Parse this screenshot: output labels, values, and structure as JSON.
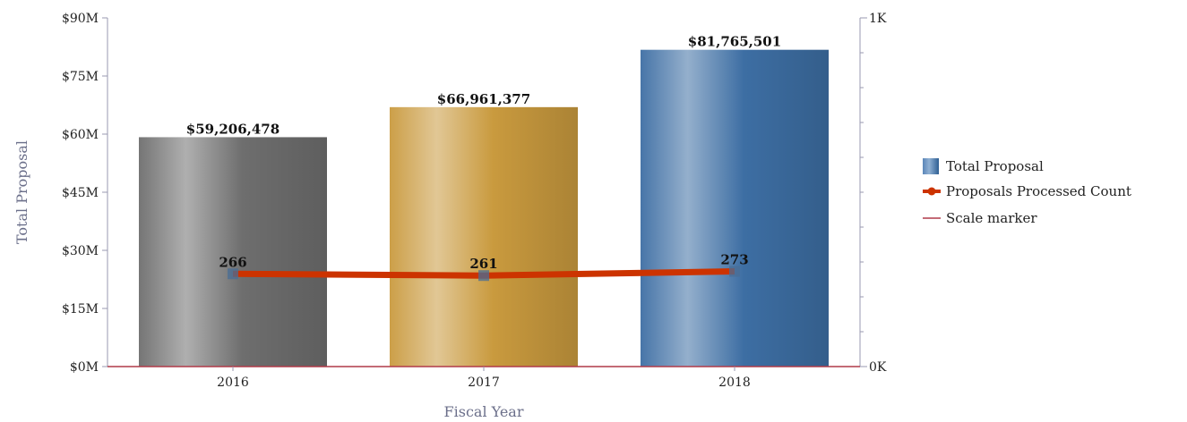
{
  "chart_data": {
    "type": "bar",
    "categories": [
      "2016",
      "2017",
      "2018"
    ],
    "xlabel": "Fiscal Year",
    "ylabel": "Total Proposal",
    "ylim": [
      0,
      90000000
    ],
    "y_ticks": [
      "$0M",
      "$15M",
      "$30M",
      "$45M",
      "$60M",
      "$75M",
      "$90M"
    ],
    "y2lim": [
      0,
      1000
    ],
    "y2_ticks": [
      "0K",
      "1K"
    ],
    "series": [
      {
        "name": "Total Proposal",
        "type": "bar",
        "axis": "left",
        "values": [
          59206478,
          66961377,
          81765501
        ],
        "labels": [
          "$59,206,478",
          "$66,961,377",
          "$81,765,501"
        ],
        "colors": [
          "#6e6e6e",
          "#c99a3e",
          "#3d6ea3"
        ]
      },
      {
        "name": "Proposals Processed Count",
        "type": "line",
        "axis": "right",
        "values": [
          266,
          261,
          273
        ],
        "labels": [
          "266",
          "261",
          "273"
        ],
        "color": "#cc3300"
      }
    ],
    "scale_marker": {
      "name": "Scale marker",
      "value": 0,
      "color": "#b03a48"
    },
    "legend": {
      "placement": "right",
      "items": [
        "Total Proposal",
        "Proposals Processed Count",
        "Scale marker"
      ]
    },
    "grid": false
  }
}
